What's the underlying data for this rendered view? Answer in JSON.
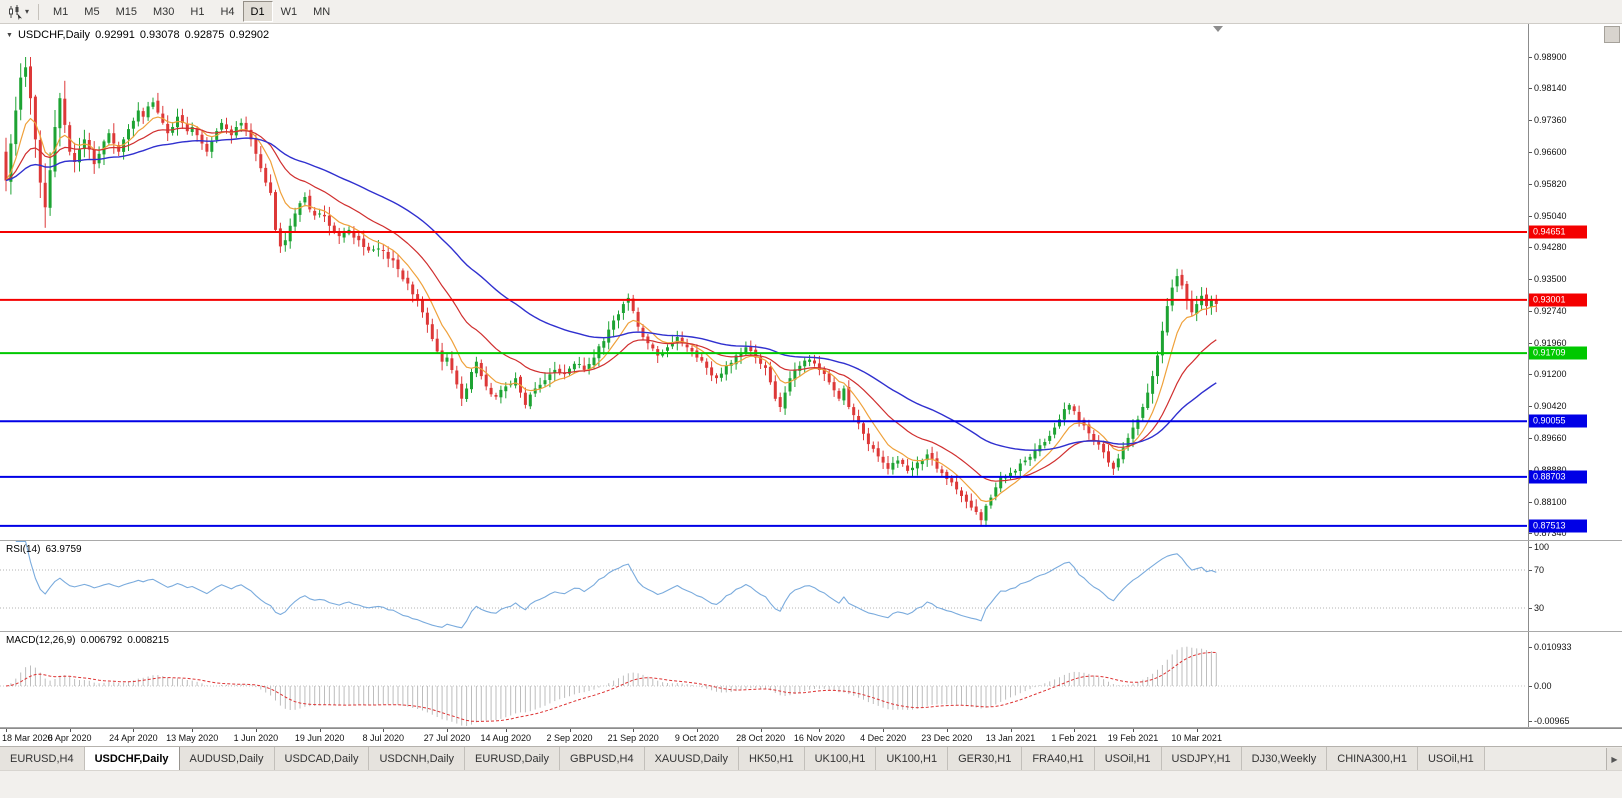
{
  "icons": {
    "dropdown": "▾",
    "collapse": "▼",
    "tab_scroll_right": "▶"
  },
  "toolbar": {
    "timeframes": [
      "M1",
      "M5",
      "M15",
      "M30",
      "H1",
      "H4",
      "D1",
      "W1",
      "MN"
    ],
    "active_timeframe": "D1"
  },
  "chart": {
    "symbol": "USDCHF,Daily",
    "open": "0.92991",
    "high": "0.93078",
    "low": "0.92875",
    "close": "0.92902"
  },
  "rsi_panel": {
    "name": "RSI(14)",
    "value": "63.9759",
    "scale_labels": [
      {
        "label": "100",
        "value": 100
      },
      {
        "label": "70",
        "value": 70
      },
      {
        "label": "30",
        "value": 30
      }
    ]
  },
  "macd_panel": {
    "name": "MACD(12,26,9)",
    "value_main": "0.006792",
    "value_signal": "0.008215",
    "scale_top": "0.010933",
    "scale_zero": "0.00",
    "scale_bottom": "-0.00965"
  },
  "tabs": {
    "active_index": 1,
    "items": [
      "EURUSD,H4",
      "USDCHF,Daily",
      "AUDUSD,Daily",
      "USDCAD,Daily",
      "USDCNH,Daily",
      "EURUSD,Daily",
      "GBPUSD,H4",
      "XAUUSD,Daily",
      "HK50,H1",
      "UK100,H1",
      "UK100,H1",
      "GER30,H1",
      "FRA40,H1",
      "USOil,H1",
      "USDJPY,H1",
      "DJ30,Weekly",
      "CHINA300,H1",
      "USOil,H1"
    ]
  },
  "colors": {
    "bull": "#1da333",
    "bear": "#dd3838",
    "ma_fast": "#efa13b",
    "ma_mid": "#d02f2f",
    "ma_slow": "#3030cf",
    "rsi_line": "#7aabdd",
    "macd_hist": "#bdbdbd",
    "macd_signal": "#dd3333",
    "level_red": "#f40000",
    "level_green": "#00c800",
    "level_blue": "#0000e6"
  },
  "chart_data": {
    "type": "candlestick",
    "symbol": "USDCHF",
    "timeframe": "Daily",
    "bar_count": 248,
    "last_ohlc": [
      0.92991,
      0.93078,
      0.92875,
      0.92902
    ],
    "y_ticks": [
      "0.98900",
      "0.98140",
      "0.97360",
      "0.96600",
      "0.95820",
      "0.95040",
      "0.94280",
      "0.93500",
      "0.92740",
      "0.91960",
      "0.91200",
      "0.90420",
      "0.89660",
      "0.88880",
      "0.88100",
      "0.87340"
    ],
    "x_labels": [
      {
        "bar": 0,
        "label": "18 Mar 2020"
      },
      {
        "bar": 13,
        "label": "6 Apr 2020"
      },
      {
        "bar": 26,
        "label": "24 Apr 2020"
      },
      {
        "bar": 38,
        "label": "13 May 2020"
      },
      {
        "bar": 51,
        "label": "1 Jun 2020"
      },
      {
        "bar": 64,
        "label": "19 Jun 2020"
      },
      {
        "bar": 77,
        "label": "8 Jul 2020"
      },
      {
        "bar": 90,
        "label": "27 Jul 2020"
      },
      {
        "bar": 102,
        "label": "14 Aug 2020"
      },
      {
        "bar": 115,
        "label": "2 Sep 2020"
      },
      {
        "bar": 128,
        "label": "21 Sep 2020"
      },
      {
        "bar": 141,
        "label": "9 Oct 2020"
      },
      {
        "bar": 154,
        "label": "28 Oct 2020"
      },
      {
        "bar": 166,
        "label": "16 Nov 2020"
      },
      {
        "bar": 179,
        "label": "4 Dec 2020"
      },
      {
        "bar": 192,
        "label": "23 Dec 2020"
      },
      {
        "bar": 205,
        "label": "13 Jan 2021"
      },
      {
        "bar": 218,
        "label": "1 Feb 2021"
      },
      {
        "bar": 230,
        "label": "19 Feb 2021"
      },
      {
        "bar": 243,
        "label": "10 Mar 2021"
      }
    ],
    "levels": [
      {
        "label": "0.94651",
        "value": 0.94651,
        "color_key": "level_red"
      },
      {
        "label": "0.93001",
        "value": 0.93001,
        "color_key": "level_red"
      },
      {
        "label": "0.91709",
        "value": 0.91709,
        "color_key": "level_green"
      },
      {
        "label": "0.90055",
        "value": 0.90055,
        "color_key": "level_blue"
      },
      {
        "label": "0.88703",
        "value": 0.88703,
        "color_key": "level_blue"
      },
      {
        "label": "0.87513",
        "value": 0.87513,
        "color_key": "level_blue"
      }
    ],
    "moving_averages": [
      {
        "period": 8,
        "color_key": "ma_fast"
      },
      {
        "period": 21,
        "color_key": "ma_mid"
      },
      {
        "period": 50,
        "color_key": "ma_slow"
      }
    ],
    "indicators": [
      {
        "type": "rsi",
        "period": 14,
        "last_value": 63.9759,
        "levels": [
          70,
          30
        ]
      },
      {
        "type": "macd",
        "fast": 12,
        "slow": 26,
        "signal": 9,
        "last_main": 0.006792,
        "last_signal": 0.008215,
        "hist_max": 0.010933,
        "hist_min": -0.00965
      }
    ],
    "close_anchors": [
      [
        0,
        0.959
      ],
      [
        1,
        0.968
      ],
      [
        2,
        0.976
      ],
      [
        3,
        0.984
      ],
      [
        4,
        0.9865
      ],
      [
        5,
        0.979
      ],
      [
        6,
        0.969
      ],
      [
        7,
        0.9585
      ],
      [
        8,
        0.9525
      ],
      [
        9,
        0.9615
      ],
      [
        10,
        0.972
      ],
      [
        11,
        0.979
      ],
      [
        12,
        0.9725
      ],
      [
        13,
        0.966
      ],
      [
        14,
        0.9635
      ],
      [
        15,
        0.9665
      ],
      [
        16,
        0.969
      ],
      [
        17,
        0.9665
      ],
      [
        18,
        0.963
      ],
      [
        19,
        0.9655
      ],
      [
        20,
        0.9685
      ],
      [
        21,
        0.9705
      ],
      [
        22,
        0.968
      ],
      [
        23,
        0.966
      ],
      [
        24,
        0.969
      ],
      [
        25,
        0.9715
      ],
      [
        26,
        0.9735
      ],
      [
        27,
        0.976
      ],
      [
        28,
        0.9745
      ],
      [
        29,
        0.977
      ],
      [
        30,
        0.978
      ],
      [
        31,
        0.9755
      ],
      [
        32,
        0.973
      ],
      [
        33,
        0.9705
      ],
      [
        34,
        0.972
      ],
      [
        35,
        0.9745
      ],
      [
        36,
        0.973
      ],
      [
        37,
        0.971
      ],
      [
        38,
        0.972
      ],
      [
        39,
        0.97
      ],
      [
        40,
        0.968
      ],
      [
        41,
        0.966
      ],
      [
        42,
        0.9685
      ],
      [
        43,
        0.971
      ],
      [
        44,
        0.973
      ],
      [
        45,
        0.9715
      ],
      [
        46,
        0.97
      ],
      [
        47,
        0.972
      ],
      [
        48,
        0.973
      ],
      [
        49,
        0.971
      ],
      [
        50,
        0.969
      ],
      [
        51,
        0.9655
      ],
      [
        52,
        0.962
      ],
      [
        53,
        0.9585
      ],
      [
        54,
        0.956
      ],
      [
        55,
        0.947
      ],
      [
        56,
        0.943
      ],
      [
        57,
        0.9445
      ],
      [
        58,
        0.948
      ],
      [
        59,
        0.951
      ],
      [
        60,
        0.9535
      ],
      [
        61,
        0.955
      ],
      [
        62,
        0.952
      ],
      [
        63,
        0.9505
      ],
      [
        64,
        0.951
      ],
      [
        66,
        0.948
      ],
      [
        68,
        0.9455
      ],
      [
        70,
        0.947
      ],
      [
        72,
        0.9445
      ],
      [
        74,
        0.942
      ],
      [
        76,
        0.9425
      ],
      [
        78,
        0.94
      ],
      [
        80,
        0.9375
      ],
      [
        82,
        0.934
      ],
      [
        84,
        0.93
      ],
      [
        85,
        0.927
      ],
      [
        86,
        0.924
      ],
      [
        87,
        0.9205
      ],
      [
        88,
        0.9175
      ],
      [
        89,
        0.915
      ],
      [
        90,
        0.916
      ],
      [
        91,
        0.913
      ],
      [
        92,
        0.9095
      ],
      [
        93,
        0.906
      ],
      [
        94,
        0.9085
      ],
      [
        95,
        0.9125
      ],
      [
        96,
        0.915
      ],
      [
        97,
        0.9115
      ],
      [
        98,
        0.909
      ],
      [
        100,
        0.9065
      ],
      [
        102,
        0.909
      ],
      [
        104,
        0.911
      ],
      [
        105,
        0.9075
      ],
      [
        106,
        0.9045
      ],
      [
        107,
        0.907
      ],
      [
        108,
        0.9085
      ],
      [
        110,
        0.9105
      ],
      [
        112,
        0.913
      ],
      [
        114,
        0.912
      ],
      [
        116,
        0.9145
      ],
      [
        118,
        0.913
      ],
      [
        120,
        0.916
      ],
      [
        122,
        0.92
      ],
      [
        124,
        0.925
      ],
      [
        126,
        0.929
      ],
      [
        127,
        0.9305
      ],
      [
        129,
        0.9235
      ],
      [
        131,
        0.9195
      ],
      [
        133,
        0.9165
      ],
      [
        135,
        0.9185
      ],
      [
        137,
        0.921
      ],
      [
        139,
        0.9185
      ],
      [
        141,
        0.916
      ],
      [
        143,
        0.9135
      ],
      [
        145,
        0.911
      ],
      [
        147,
        0.914
      ],
      [
        149,
        0.9165
      ],
      [
        151,
        0.9185
      ],
      [
        153,
        0.916
      ],
      [
        154,
        0.9145
      ],
      [
        155,
        0.9135
      ],
      [
        156,
        0.91
      ],
      [
        157,
        0.906
      ],
      [
        158,
        0.904
      ],
      [
        159,
        0.9075
      ],
      [
        160,
        0.911
      ],
      [
        162,
        0.914
      ],
      [
        164,
        0.9155
      ],
      [
        166,
        0.913
      ],
      [
        168,
        0.91
      ],
      [
        170,
        0.906
      ],
      [
        171,
        0.9085
      ],
      [
        172,
        0.904
      ],
      [
        174,
        0.9
      ],
      [
        175,
        0.8975
      ],
      [
        176,
        0.895
      ],
      [
        178,
        0.892
      ],
      [
        179,
        0.8905
      ],
      [
        180,
        0.889
      ],
      [
        182,
        0.891
      ],
      [
        184,
        0.8885
      ],
      [
        186,
        0.8905
      ],
      [
        188,
        0.8925
      ],
      [
        190,
        0.889
      ],
      [
        192,
        0.8865
      ],
      [
        194,
        0.884
      ],
      [
        196,
        0.881
      ],
      [
        198,
        0.8785
      ],
      [
        199,
        0.8765
      ],
      [
        200,
        0.88
      ],
      [
        201,
        0.882
      ],
      [
        202,
        0.8845
      ],
      [
        203,
        0.887
      ],
      [
        205,
        0.888
      ],
      [
        206,
        0.8885
      ],
      [
        208,
        0.891
      ],
      [
        210,
        0.8935
      ],
      [
        212,
        0.8955
      ],
      [
        214,
        0.899
      ],
      [
        215,
        0.901
      ],
      [
        216,
        0.9035
      ],
      [
        217,
        0.9045
      ],
      [
        218,
        0.903
      ],
      [
        220,
        0.8995
      ],
      [
        222,
        0.896
      ],
      [
        224,
        0.893
      ],
      [
        225,
        0.8905
      ],
      [
        226,
        0.889
      ],
      [
        227,
        0.8915
      ],
      [
        228,
        0.894
      ],
      [
        229,
        0.8965
      ],
      [
        230,
        0.899
      ],
      [
        231,
        0.901
      ],
      [
        232,
        0.904
      ],
      [
        233,
        0.9075
      ],
      [
        234,
        0.9115
      ],
      [
        235,
        0.9165
      ],
      [
        236,
        0.9225
      ],
      [
        237,
        0.9285
      ],
      [
        238,
        0.933
      ],
      [
        239,
        0.9358
      ],
      [
        240,
        0.9335
      ],
      [
        241,
        0.93
      ],
      [
        242,
        0.927
      ],
      [
        243,
        0.929
      ],
      [
        244,
        0.931
      ],
      [
        245,
        0.9285
      ],
      [
        246,
        0.93
      ],
      [
        247,
        0.92902
      ]
    ]
  }
}
